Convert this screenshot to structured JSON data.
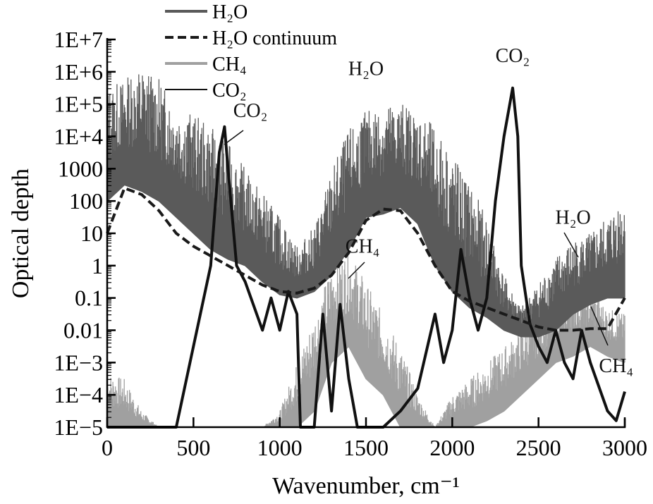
{
  "chart_data": {
    "type": "line",
    "title": "",
    "xlabel": "Wavenumber, cm⁻¹",
    "ylabel": "Optical depth",
    "xlim": [
      0,
      3000
    ],
    "ylim_log10": [
      -5,
      7
    ],
    "yscale": "log",
    "grid": false,
    "legend_position": "top-center",
    "x_ticks": [
      "0",
      "500",
      "1000",
      "1500",
      "2000",
      "2500",
      "3000"
    ],
    "x_tick_values": [
      0,
      500,
      1000,
      1500,
      2000,
      2500,
      3000
    ],
    "y_ticks": [
      "1E+7",
      "1E+6",
      "1E+5",
      "1E+4",
      "1000",
      "100",
      "10",
      "1",
      "0.1",
      "0.01",
      "1E−3",
      "1E−4",
      "1E−5"
    ],
    "y_tick_log10": [
      7,
      6,
      5,
      4,
      3,
      2,
      1,
      0,
      -1,
      -2,
      -3,
      -4,
      -5
    ],
    "legend": [
      {
        "label": "H₂O",
        "style": "solid-thick",
        "color": "#5a5a5a"
      },
      {
        "label": "H₂O continuum",
        "style": "dashed",
        "color": "#1a1a1a"
      },
      {
        "label": "CH₄",
        "style": "solid-thick",
        "color": "#a0a0a0"
      },
      {
        "label": "CO₂",
        "style": "solid-thin",
        "color": "#111111"
      }
    ],
    "annotations": [
      {
        "text": "CO₂",
        "x": 830,
        "log10": 4.6
      },
      {
        "text": "H₂O",
        "x": 1500,
        "log10": 5.9
      },
      {
        "text": "CO₂",
        "x": 2350,
        "log10": 6.3
      },
      {
        "text": "H₂O",
        "x": 2700,
        "log10": 1.3
      },
      {
        "text": "CH₄",
        "x": 1480,
        "log10": 0.4
      },
      {
        "text": "CH₄",
        "x": 2950,
        "log10": -3.3
      }
    ],
    "x_grid": [
      0,
      100,
      200,
      300,
      400,
      500,
      600,
      700,
      800,
      900,
      1000,
      1100,
      1200,
      1300,
      1400,
      1500,
      1600,
      1700,
      1800,
      1900,
      2000,
      2100,
      2200,
      2300,
      2400,
      2500,
      2600,
      2700,
      2800,
      2900,
      3000
    ],
    "series": [
      {
        "name": "H₂O continuum",
        "log10": [
          1,
          2.4,
          2.2,
          1.7,
          1.0,
          0.6,
          0.3,
          0,
          -0.3,
          -0.6,
          -0.8,
          -0.85,
          -0.7,
          -0.3,
          0.4,
          1.4,
          1.75,
          1.7,
          1.0,
          0,
          -0.8,
          -1.1,
          -1.3,
          -1.5,
          -1.7,
          -1.9,
          -2.0,
          -2.0,
          -1.95,
          -1.95,
          -1.0
        ]
      },
      {
        "name": "H₂O",
        "upper_log10": [
          5.5,
          5.8,
          6.2,
          5.8,
          5.0,
          4.7,
          4.3,
          3.8,
          3.0,
          2.3,
          1.5,
          0.6,
          1.2,
          3.0,
          4.2,
          4.8,
          5.0,
          5.1,
          4.8,
          4.3,
          3.5,
          2.6,
          1.5,
          -0.3,
          -1.3,
          -0.5,
          0.3,
          0.8,
          1.0,
          1.5,
          2.3
        ],
        "lower_log10": [
          2,
          2.5,
          2.3,
          2,
          1.5,
          1,
          0.5,
          0.2,
          0,
          -0.5,
          -0.9,
          -1,
          -0.8,
          -0.3,
          0.5,
          1.5,
          1.6,
          1.8,
          1.3,
          0,
          -0.8,
          -1.3,
          -1.6,
          -2,
          -2.2,
          -2.2,
          -2,
          -1.5,
          -1.2,
          -1,
          -1
        ]
      },
      {
        "name": "CH₄",
        "upper_log10": [
          -3.3,
          -3.5,
          -4.5,
          -5,
          -5,
          -5,
          -5,
          -5,
          -5,
          -5,
          -4.5,
          -3,
          -1.5,
          0,
          0.5,
          -0.5,
          -1.5,
          -2.5,
          -4,
          -5,
          -4,
          -3.5,
          -3,
          -2.5,
          -2,
          -1.5,
          -1,
          -0.5,
          -0.8,
          -1.3,
          -1.5
        ],
        "lower_log10": [
          -5,
          -5,
          -5,
          -5,
          -5,
          -5,
          -5,
          -5,
          -5,
          -5,
          -5,
          -5,
          -4.5,
          -3,
          -2.5,
          -3.5,
          -4,
          -5,
          -5,
          -5,
          -5,
          -5,
          -4.8,
          -4.5,
          -4,
          -3.5,
          -3,
          -2.8,
          -2.5,
          -2.8,
          -3
        ]
      },
      {
        "name": "CO₂",
        "x": [
          0,
          300,
          400,
          500,
          600,
          650,
          680,
          700,
          750,
          800,
          900,
          950,
          1000,
          1050,
          1100,
          1120,
          1200,
          1250,
          1300,
          1350,
          1400,
          1450,
          1600,
          1700,
          1800,
          1900,
          1950,
          2000,
          2050,
          2100,
          2150,
          2200,
          2250,
          2300,
          2350,
          2380,
          2400,
          2450,
          2500,
          2550,
          2600,
          2650,
          2700,
          2750,
          2800,
          2900,
          2950,
          3000
        ],
        "log10": [
          -5,
          -5,
          -5,
          -2.5,
          0,
          3.5,
          4.3,
          3,
          0,
          -0.5,
          -2,
          -1,
          -2,
          -0.8,
          -1.5,
          -5,
          -5,
          -1.5,
          -4.5,
          -1.2,
          -3.5,
          -5,
          -5,
          -4.5,
          -3.8,
          -1.5,
          -3,
          -2,
          0.5,
          -1,
          -2,
          -1,
          2,
          4,
          5.5,
          4,
          0,
          -1.8,
          -2.5,
          -3,
          -2,
          -3,
          -3.5,
          -2,
          -3,
          -4.5,
          -4.8,
          -3.9
        ]
      }
    ]
  }
}
